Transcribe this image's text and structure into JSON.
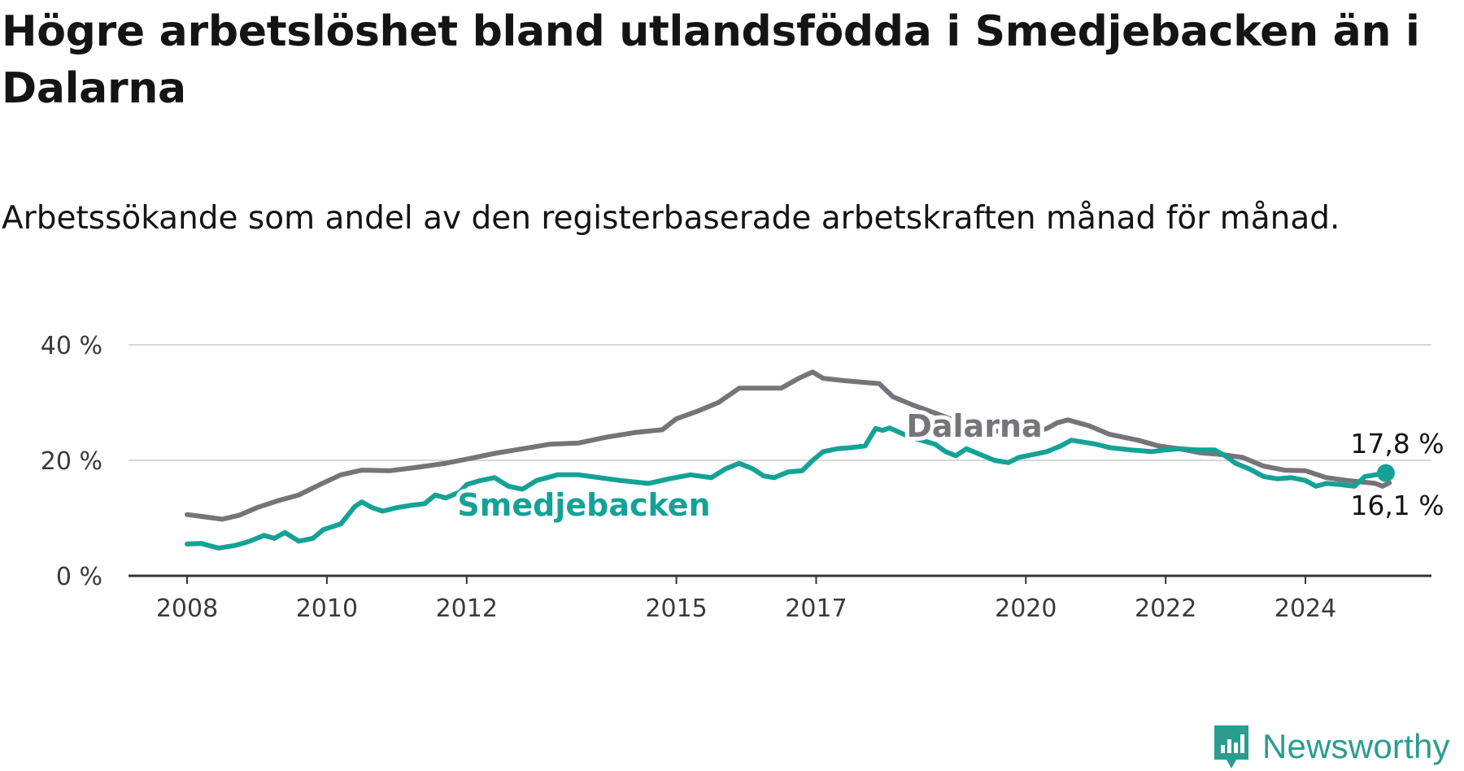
{
  "title": "Högre arbetslöshet bland utlandsfödda i Smedjebacken än i Dalarna",
  "subtitle": "Arbetssökande som andel av den registerbaserade arbetskraften månad för månad.",
  "brand": {
    "name": "Newsworthy",
    "color": "#2a9d8f"
  },
  "colors": {
    "dalarna": "#777479",
    "smedjebacken": "#14a296",
    "grid": "#d9d9d9",
    "axis": "#333333"
  },
  "chart_data": {
    "type": "line",
    "x_unit": "year",
    "xlim": [
      2008,
      2025.5
    ],
    "ylim": [
      0,
      40
    ],
    "y_ticks": [
      {
        "value": 0,
        "label": "0 %"
      },
      {
        "value": 20,
        "label": "20 %"
      },
      {
        "value": 40,
        "label": "40 %"
      }
    ],
    "x_ticks": [
      {
        "value": 2008,
        "label": "2008"
      },
      {
        "value": 2010,
        "label": "2010"
      },
      {
        "value": 2012,
        "label": "2012"
      },
      {
        "value": 2015,
        "label": "2015"
      },
      {
        "value": 2017,
        "label": "2017"
      },
      {
        "value": 2020,
        "label": "2020"
      },
      {
        "value": 2022,
        "label": "2022"
      },
      {
        "value": 2024,
        "label": "2024"
      }
    ],
    "grid": true,
    "series": [
      {
        "name": "Dalarna",
        "end_label": "16,1 %",
        "points": [
          [
            2008.0,
            10.6
          ],
          [
            2008.2,
            10.3
          ],
          [
            2008.5,
            9.8
          ],
          [
            2008.75,
            10.5
          ],
          [
            2009.0,
            11.8
          ],
          [
            2009.3,
            13.0
          ],
          [
            2009.6,
            14.0
          ],
          [
            2009.9,
            15.8
          ],
          [
            2010.2,
            17.5
          ],
          [
            2010.5,
            18.3
          ],
          [
            2010.9,
            18.2
          ],
          [
            2011.3,
            18.8
          ],
          [
            2011.7,
            19.5
          ],
          [
            2012.0,
            20.2
          ],
          [
            2012.4,
            21.2
          ],
          [
            2012.8,
            22.0
          ],
          [
            2013.2,
            22.8
          ],
          [
            2013.6,
            23.0
          ],
          [
            2014.0,
            24.0
          ],
          [
            2014.4,
            24.8
          ],
          [
            2014.8,
            25.3
          ],
          [
            2015.0,
            27.2
          ],
          [
            2015.3,
            28.5
          ],
          [
            2015.6,
            30.0
          ],
          [
            2015.9,
            32.5
          ],
          [
            2016.2,
            32.5
          ],
          [
            2016.5,
            32.5
          ],
          [
            2016.75,
            34.2
          ],
          [
            2016.95,
            35.3
          ],
          [
            2017.1,
            34.2
          ],
          [
            2017.4,
            33.8
          ],
          [
            2017.7,
            33.5
          ],
          [
            2017.9,
            33.3
          ],
          [
            2018.1,
            31.0
          ],
          [
            2018.4,
            29.5
          ],
          [
            2018.7,
            28.2
          ],
          [
            2019.0,
            26.8
          ],
          [
            2019.4,
            25.5
          ],
          [
            2019.7,
            24.8
          ],
          [
            2020.0,
            24.5
          ],
          [
            2020.3,
            25.5
          ],
          [
            2020.45,
            26.5
          ],
          [
            2020.6,
            27.0
          ],
          [
            2020.9,
            26.0
          ],
          [
            2021.2,
            24.5
          ],
          [
            2021.6,
            23.5
          ],
          [
            2021.9,
            22.5
          ],
          [
            2022.2,
            22.0
          ],
          [
            2022.5,
            21.3
          ],
          [
            2022.8,
            21.0
          ],
          [
            2023.1,
            20.5
          ],
          [
            2023.4,
            19.0
          ],
          [
            2023.7,
            18.3
          ],
          [
            2024.0,
            18.2
          ],
          [
            2024.3,
            17.0
          ],
          [
            2024.6,
            16.5
          ],
          [
            2024.85,
            16.2
          ],
          [
            2025.0,
            16.0
          ],
          [
            2025.1,
            15.5
          ],
          [
            2025.2,
            16.1
          ]
        ]
      },
      {
        "name": "Smedjebacken",
        "end_label": "17,8 %",
        "points": [
          [
            2008.0,
            5.5
          ],
          [
            2008.2,
            5.6
          ],
          [
            2008.45,
            4.8
          ],
          [
            2008.7,
            5.3
          ],
          [
            2008.9,
            6.0
          ],
          [
            2009.1,
            7.0
          ],
          [
            2009.25,
            6.5
          ],
          [
            2009.4,
            7.5
          ],
          [
            2009.6,
            6.0
          ],
          [
            2009.8,
            6.5
          ],
          [
            2009.95,
            8.0
          ],
          [
            2010.2,
            9.0
          ],
          [
            2010.4,
            12.0
          ],
          [
            2010.5,
            12.8
          ],
          [
            2010.65,
            11.8
          ],
          [
            2010.8,
            11.2
          ],
          [
            2011.0,
            11.8
          ],
          [
            2011.2,
            12.2
          ],
          [
            2011.4,
            12.5
          ],
          [
            2011.55,
            14.0
          ],
          [
            2011.7,
            13.5
          ],
          [
            2011.9,
            14.5
          ],
          [
            2012.0,
            15.8
          ],
          [
            2012.2,
            16.5
          ],
          [
            2012.4,
            17.0
          ],
          [
            2012.6,
            15.5
          ],
          [
            2012.8,
            15.0
          ],
          [
            2013.0,
            16.5
          ],
          [
            2013.3,
            17.5
          ],
          [
            2013.6,
            17.5
          ],
          [
            2013.9,
            17.0
          ],
          [
            2014.2,
            16.5
          ],
          [
            2014.6,
            16.0
          ],
          [
            2014.9,
            16.8
          ],
          [
            2015.2,
            17.5
          ],
          [
            2015.5,
            17.0
          ],
          [
            2015.7,
            18.5
          ],
          [
            2015.9,
            19.5
          ],
          [
            2016.1,
            18.5
          ],
          [
            2016.25,
            17.3
          ],
          [
            2016.4,
            17.0
          ],
          [
            2016.6,
            18.0
          ],
          [
            2016.8,
            18.2
          ],
          [
            2016.95,
            20.0
          ],
          [
            2017.1,
            21.5
          ],
          [
            2017.3,
            22.0
          ],
          [
            2017.5,
            22.2
          ],
          [
            2017.7,
            22.5
          ],
          [
            2017.85,
            25.5
          ],
          [
            2017.95,
            25.2
          ],
          [
            2018.05,
            25.6
          ],
          [
            2018.2,
            24.8
          ],
          [
            2018.35,
            24.0
          ],
          [
            2018.5,
            23.5
          ],
          [
            2018.7,
            22.8
          ],
          [
            2018.85,
            21.5
          ],
          [
            2019.0,
            20.8
          ],
          [
            2019.15,
            22.0
          ],
          [
            2019.35,
            21.0
          ],
          [
            2019.55,
            20.0
          ],
          [
            2019.75,
            19.6
          ],
          [
            2019.9,
            20.5
          ],
          [
            2020.1,
            21.0
          ],
          [
            2020.3,
            21.5
          ],
          [
            2020.5,
            22.5
          ],
          [
            2020.65,
            23.5
          ],
          [
            2020.8,
            23.2
          ],
          [
            2021.0,
            22.8
          ],
          [
            2021.2,
            22.2
          ],
          [
            2021.5,
            21.8
          ],
          [
            2021.8,
            21.5
          ],
          [
            2022.0,
            21.8
          ],
          [
            2022.2,
            22.0
          ],
          [
            2022.45,
            21.8
          ],
          [
            2022.7,
            21.8
          ],
          [
            2022.85,
            20.8
          ],
          [
            2023.0,
            19.5
          ],
          [
            2023.2,
            18.5
          ],
          [
            2023.4,
            17.2
          ],
          [
            2023.6,
            16.8
          ],
          [
            2023.8,
            17.0
          ],
          [
            2024.0,
            16.5
          ],
          [
            2024.15,
            15.5
          ],
          [
            2024.3,
            16.0
          ],
          [
            2024.5,
            15.8
          ],
          [
            2024.7,
            15.5
          ],
          [
            2024.85,
            17.2
          ],
          [
            2025.0,
            17.5
          ],
          [
            2025.15,
            17.8
          ]
        ]
      }
    ],
    "annotations": [
      {
        "text": "Dalarna",
        "series": "Dalarna"
      },
      {
        "text": "Smedjebacken",
        "series": "Smedjebacken"
      }
    ]
  }
}
